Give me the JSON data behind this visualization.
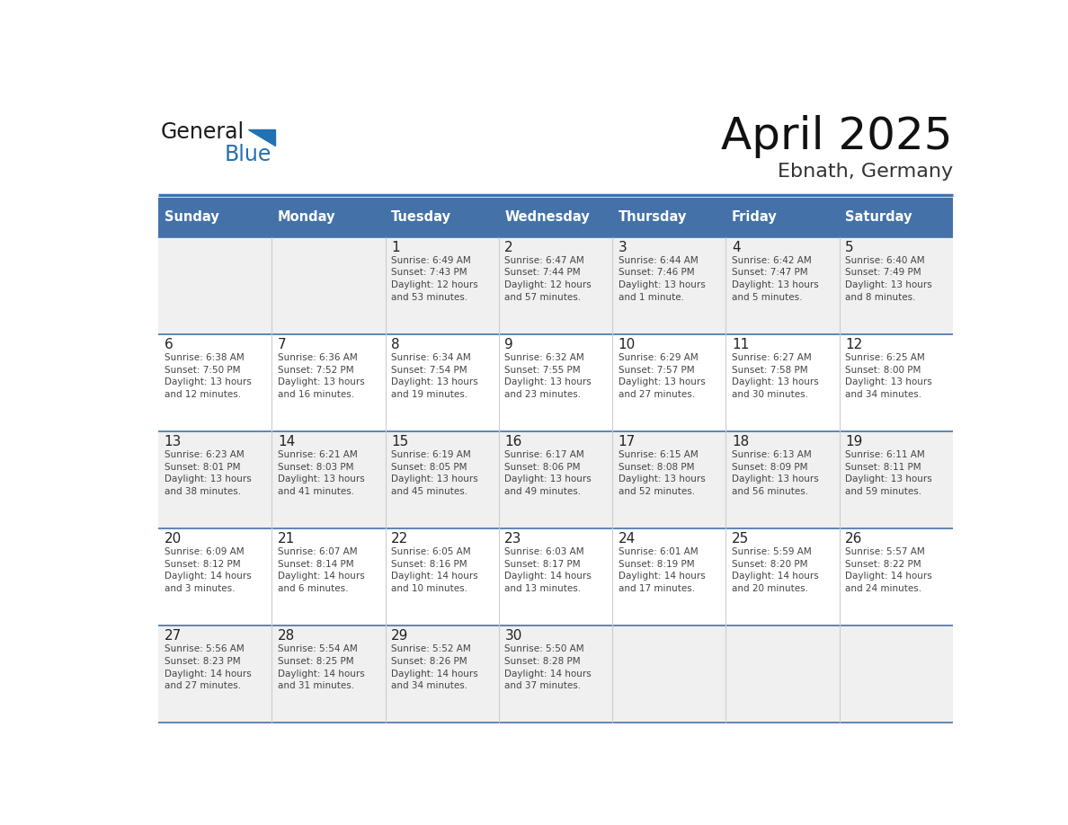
{
  "title": "April 2025",
  "subtitle": "Ebnath, Germany",
  "header_color": "#4472A8",
  "header_text_color": "#FFFFFF",
  "cell_bg_even": "#F0F0F0",
  "cell_bg_odd": "#FFFFFF",
  "border_color": "#4472A8",
  "row_line_color": "#4472A8",
  "col_line_color": "#CCCCCC",
  "text_color": "#333333",
  "day_num_color": "#222222",
  "day_headers": [
    "Sunday",
    "Monday",
    "Tuesday",
    "Wednesday",
    "Thursday",
    "Friday",
    "Saturday"
  ],
  "weeks": [
    [
      {
        "day": "",
        "info": ""
      },
      {
        "day": "",
        "info": ""
      },
      {
        "day": "1",
        "info": "Sunrise: 6:49 AM\nSunset: 7:43 PM\nDaylight: 12 hours\nand 53 minutes."
      },
      {
        "day": "2",
        "info": "Sunrise: 6:47 AM\nSunset: 7:44 PM\nDaylight: 12 hours\nand 57 minutes."
      },
      {
        "day": "3",
        "info": "Sunrise: 6:44 AM\nSunset: 7:46 PM\nDaylight: 13 hours\nand 1 minute."
      },
      {
        "day": "4",
        "info": "Sunrise: 6:42 AM\nSunset: 7:47 PM\nDaylight: 13 hours\nand 5 minutes."
      },
      {
        "day": "5",
        "info": "Sunrise: 6:40 AM\nSunset: 7:49 PM\nDaylight: 13 hours\nand 8 minutes."
      }
    ],
    [
      {
        "day": "6",
        "info": "Sunrise: 6:38 AM\nSunset: 7:50 PM\nDaylight: 13 hours\nand 12 minutes."
      },
      {
        "day": "7",
        "info": "Sunrise: 6:36 AM\nSunset: 7:52 PM\nDaylight: 13 hours\nand 16 minutes."
      },
      {
        "day": "8",
        "info": "Sunrise: 6:34 AM\nSunset: 7:54 PM\nDaylight: 13 hours\nand 19 minutes."
      },
      {
        "day": "9",
        "info": "Sunrise: 6:32 AM\nSunset: 7:55 PM\nDaylight: 13 hours\nand 23 minutes."
      },
      {
        "day": "10",
        "info": "Sunrise: 6:29 AM\nSunset: 7:57 PM\nDaylight: 13 hours\nand 27 minutes."
      },
      {
        "day": "11",
        "info": "Sunrise: 6:27 AM\nSunset: 7:58 PM\nDaylight: 13 hours\nand 30 minutes."
      },
      {
        "day": "12",
        "info": "Sunrise: 6:25 AM\nSunset: 8:00 PM\nDaylight: 13 hours\nand 34 minutes."
      }
    ],
    [
      {
        "day": "13",
        "info": "Sunrise: 6:23 AM\nSunset: 8:01 PM\nDaylight: 13 hours\nand 38 minutes."
      },
      {
        "day": "14",
        "info": "Sunrise: 6:21 AM\nSunset: 8:03 PM\nDaylight: 13 hours\nand 41 minutes."
      },
      {
        "day": "15",
        "info": "Sunrise: 6:19 AM\nSunset: 8:05 PM\nDaylight: 13 hours\nand 45 minutes."
      },
      {
        "day": "16",
        "info": "Sunrise: 6:17 AM\nSunset: 8:06 PM\nDaylight: 13 hours\nand 49 minutes."
      },
      {
        "day": "17",
        "info": "Sunrise: 6:15 AM\nSunset: 8:08 PM\nDaylight: 13 hours\nand 52 minutes."
      },
      {
        "day": "18",
        "info": "Sunrise: 6:13 AM\nSunset: 8:09 PM\nDaylight: 13 hours\nand 56 minutes."
      },
      {
        "day": "19",
        "info": "Sunrise: 6:11 AM\nSunset: 8:11 PM\nDaylight: 13 hours\nand 59 minutes."
      }
    ],
    [
      {
        "day": "20",
        "info": "Sunrise: 6:09 AM\nSunset: 8:12 PM\nDaylight: 14 hours\nand 3 minutes."
      },
      {
        "day": "21",
        "info": "Sunrise: 6:07 AM\nSunset: 8:14 PM\nDaylight: 14 hours\nand 6 minutes."
      },
      {
        "day": "22",
        "info": "Sunrise: 6:05 AM\nSunset: 8:16 PM\nDaylight: 14 hours\nand 10 minutes."
      },
      {
        "day": "23",
        "info": "Sunrise: 6:03 AM\nSunset: 8:17 PM\nDaylight: 14 hours\nand 13 minutes."
      },
      {
        "day": "24",
        "info": "Sunrise: 6:01 AM\nSunset: 8:19 PM\nDaylight: 14 hours\nand 17 minutes."
      },
      {
        "day": "25",
        "info": "Sunrise: 5:59 AM\nSunset: 8:20 PM\nDaylight: 14 hours\nand 20 minutes."
      },
      {
        "day": "26",
        "info": "Sunrise: 5:57 AM\nSunset: 8:22 PM\nDaylight: 14 hours\nand 24 minutes."
      }
    ],
    [
      {
        "day": "27",
        "info": "Sunrise: 5:56 AM\nSunset: 8:23 PM\nDaylight: 14 hours\nand 27 minutes."
      },
      {
        "day": "28",
        "info": "Sunrise: 5:54 AM\nSunset: 8:25 PM\nDaylight: 14 hours\nand 31 minutes."
      },
      {
        "day": "29",
        "info": "Sunrise: 5:52 AM\nSunset: 8:26 PM\nDaylight: 14 hours\nand 34 minutes."
      },
      {
        "day": "30",
        "info": "Sunrise: 5:50 AM\nSunset: 8:28 PM\nDaylight: 14 hours\nand 37 minutes."
      },
      {
        "day": "",
        "info": ""
      },
      {
        "day": "",
        "info": ""
      },
      {
        "day": "",
        "info": ""
      }
    ]
  ],
  "logo_general_color": "#1a1a1a",
  "logo_blue_color": "#2271B3",
  "logo_triangle_color": "#2271B3",
  "title_fontsize": 36,
  "subtitle_fontsize": 16,
  "header_fontsize": 10.5,
  "day_num_fontsize": 11,
  "info_fontsize": 7.5
}
